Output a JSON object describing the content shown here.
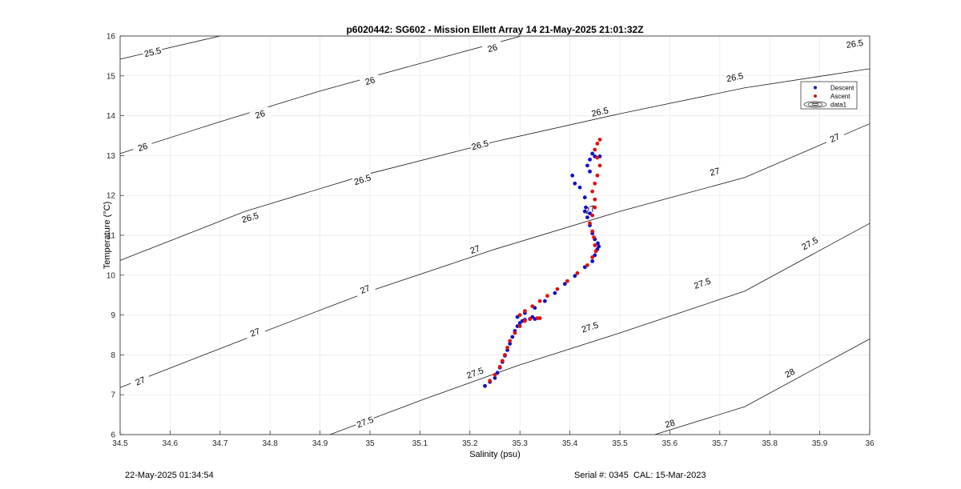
{
  "chart_data": {
    "type": "scatter",
    "title": "p6020442: SG602 - Mission Ellett Array 14 21-May-2025 21:01:32Z",
    "xlabel": "Salinity (psu)",
    "ylabel": "Temperature (°C)",
    "xlim": [
      34.5,
      36
    ],
    "ylim": [
      6,
      16
    ],
    "xticks": [
      34.5,
      34.6,
      34.7,
      34.8,
      34.9,
      35,
      35.1,
      35.2,
      35.3,
      35.4,
      35.5,
      35.6,
      35.7,
      35.8,
      35.9,
      36
    ],
    "xtick_labels": [
      "34.5",
      "34.6",
      "34.7",
      "34.8",
      "34.9",
      "35",
      "35.1",
      "35.2",
      "35.3",
      "35.4",
      "35.5",
      "35.6",
      "35.7",
      "35.8",
      "35.9",
      "36"
    ],
    "yticks": [
      6,
      7,
      8,
      9,
      10,
      11,
      12,
      13,
      14,
      15,
      16
    ],
    "ytick_labels": [
      "6",
      "7",
      "8",
      "9",
      "10",
      "11",
      "12",
      "13",
      "14",
      "15",
      "16"
    ],
    "grid": true,
    "legend_position": "top-right",
    "legend": [
      {
        "label": "Descent",
        "color": "#1010c8",
        "marker": "dot"
      },
      {
        "label": "Ascent",
        "color": "#e01010",
        "marker": "dot"
      },
      {
        "label": "data1",
        "color": "#000000",
        "marker": "contour"
      }
    ],
    "contours": [
      {
        "label": "25.5",
        "points": [
          [
            34.5,
            15.42
          ],
          [
            34.7,
            16.0
          ]
        ],
        "labels_at": [
          [
            34.565,
            15.6
          ]
        ]
      },
      {
        "label": "26",
        "points": [
          [
            34.5,
            13.05
          ],
          [
            34.7,
            13.85
          ],
          [
            34.9,
            14.62
          ],
          [
            35.1,
            15.31
          ],
          [
            35.3,
            15.99
          ]
        ],
        "labels_at": [
          [
            34.545,
            13.22
          ],
          [
            34.78,
            14.04
          ],
          [
            35.0,
            14.88
          ],
          [
            35.245,
            15.7
          ]
        ]
      },
      {
        "label": "26.5",
        "points": [
          [
            34.5,
            10.37
          ],
          [
            34.75,
            11.6
          ],
          [
            35.0,
            12.55
          ],
          [
            35.25,
            13.35
          ],
          [
            35.5,
            14.05
          ],
          [
            35.75,
            14.7
          ],
          [
            36.0,
            15.18
          ]
        ],
        "labels_at": [
          [
            34.76,
            11.45
          ],
          [
            34.985,
            12.4
          ],
          [
            35.22,
            13.27
          ],
          [
            35.46,
            14.1
          ],
          [
            35.73,
            14.97
          ],
          [
            35.97,
            15.81
          ]
        ]
      },
      {
        "label": "27",
        "points": [
          [
            34.5,
            7.18
          ],
          [
            34.75,
            8.4
          ],
          [
            35.0,
            9.6
          ],
          [
            35.25,
            10.65
          ],
          [
            35.5,
            11.6
          ],
          [
            35.75,
            12.45
          ],
          [
            36.0,
            13.8
          ]
        ],
        "labels_at": [
          [
            34.54,
            7.35
          ],
          [
            34.77,
            8.57
          ],
          [
            34.99,
            9.65
          ],
          [
            35.21,
            10.65
          ],
          [
            35.44,
            11.65
          ],
          [
            35.69,
            12.6
          ],
          [
            35.93,
            13.45
          ]
        ]
      },
      {
        "label": "27.5",
        "points": [
          [
            34.92,
            6.0
          ],
          [
            35.1,
            6.85
          ],
          [
            35.3,
            7.75
          ],
          [
            35.5,
            8.55
          ],
          [
            35.75,
            9.6
          ],
          [
            36.0,
            11.3
          ]
        ],
        "labels_at": [
          [
            34.99,
            6.32
          ],
          [
            35.21,
            7.55
          ],
          [
            35.44,
            8.7
          ],
          [
            35.665,
            9.8
          ],
          [
            35.88,
            10.8
          ]
        ]
      },
      {
        "label": "28",
        "points": [
          [
            35.57,
            6.0
          ],
          [
            35.75,
            6.7
          ],
          [
            36.0,
            8.4
          ]
        ],
        "labels_at": [
          [
            35.6,
            6.28
          ],
          [
            35.84,
            7.55
          ]
        ]
      }
    ],
    "series": [
      {
        "name": "Descent",
        "color": "#1010c8",
        "points": [
          [
            35.23,
            7.22
          ],
          [
            35.24,
            7.32
          ],
          [
            35.25,
            7.42
          ],
          [
            35.255,
            7.55
          ],
          [
            35.26,
            7.68
          ],
          [
            35.265,
            7.82
          ],
          [
            35.27,
            7.98
          ],
          [
            35.275,
            8.12
          ],
          [
            35.28,
            8.28
          ],
          [
            35.285,
            8.45
          ],
          [
            35.29,
            8.6
          ],
          [
            35.295,
            8.72
          ],
          [
            35.3,
            8.8
          ],
          [
            35.305,
            8.85
          ],
          [
            35.31,
            8.88
          ],
          [
            35.32,
            8.9
          ],
          [
            35.33,
            8.9
          ],
          [
            35.325,
            8.95
          ],
          [
            35.295,
            8.95
          ],
          [
            35.31,
            9.05
          ],
          [
            35.33,
            9.18
          ],
          [
            35.35,
            9.35
          ],
          [
            35.37,
            9.55
          ],
          [
            35.39,
            9.78
          ],
          [
            35.41,
            9.98
          ],
          [
            35.43,
            10.2
          ],
          [
            35.445,
            10.35
          ],
          [
            35.45,
            10.5
          ],
          [
            35.455,
            10.65
          ],
          [
            35.458,
            10.72
          ],
          [
            35.456,
            10.8
          ],
          [
            35.45,
            10.9
          ],
          [
            35.445,
            11.05
          ],
          [
            35.44,
            11.25
          ],
          [
            35.435,
            11.45
          ],
          [
            35.43,
            11.6
          ],
          [
            35.44,
            11.55
          ],
          [
            35.432,
            11.7
          ],
          [
            35.43,
            11.95
          ],
          [
            35.42,
            12.2
          ],
          [
            35.41,
            12.3
          ],
          [
            35.405,
            12.5
          ],
          [
            35.44,
            12.6
          ],
          [
            35.435,
            12.75
          ],
          [
            35.44,
            12.9
          ],
          [
            35.45,
            12.98
          ],
          [
            35.46,
            12.98
          ],
          [
            35.445,
            13.05
          ]
        ]
      },
      {
        "name": "Ascent",
        "color": "#e01010",
        "points": [
          [
            35.24,
            7.35
          ],
          [
            35.25,
            7.5
          ],
          [
            35.26,
            7.7
          ],
          [
            35.265,
            7.85
          ],
          [
            35.27,
            8.0
          ],
          [
            35.275,
            8.18
          ],
          [
            35.28,
            8.35
          ],
          [
            35.29,
            8.55
          ],
          [
            35.3,
            8.72
          ],
          [
            35.31,
            8.85
          ],
          [
            35.32,
            8.9
          ],
          [
            35.335,
            8.92
          ],
          [
            35.34,
            8.92
          ],
          [
            35.3,
            9.0
          ],
          [
            35.31,
            9.1
          ],
          [
            35.325,
            9.22
          ],
          [
            35.34,
            9.35
          ],
          [
            35.355,
            9.48
          ],
          [
            35.375,
            9.65
          ],
          [
            35.395,
            9.85
          ],
          [
            35.415,
            10.05
          ],
          [
            35.435,
            10.25
          ],
          [
            35.445,
            10.45
          ],
          [
            35.452,
            10.6
          ],
          [
            35.45,
            10.75
          ],
          [
            35.448,
            10.95
          ],
          [
            35.445,
            11.1
          ],
          [
            35.44,
            11.3
          ],
          [
            35.445,
            11.5
          ],
          [
            35.45,
            11.7
          ],
          [
            35.45,
            11.9
          ],
          [
            35.445,
            12.1
          ],
          [
            35.45,
            12.3
          ],
          [
            35.455,
            12.5
          ],
          [
            35.46,
            12.75
          ],
          [
            35.455,
            12.95
          ],
          [
            35.45,
            13.15
          ],
          [
            35.455,
            13.3
          ],
          [
            35.46,
            13.4
          ]
        ]
      }
    ]
  },
  "footer": {
    "timestamp": "22-May-2025 01:34:54",
    "serial": "Serial #: 0345  CAL: 15-Mar-2023"
  }
}
